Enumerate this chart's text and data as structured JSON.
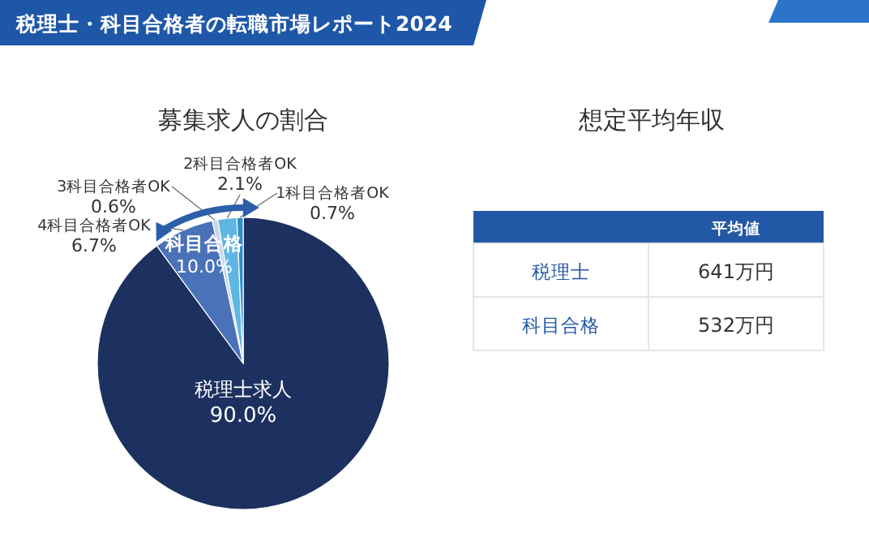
{
  "chart_data": [
    {
      "type": "pie",
      "title": "税理士・科目合格者の転職市場レポート2024",
      "subtitle": "募集求人の割合",
      "categories": [
        "税理士求人",
        "4科目合格者OK",
        "3科目合格者OK",
        "2科目合格者OK",
        "1科目合格者OK"
      ],
      "values": [
        90.0,
        6.7,
        0.6,
        2.1,
        0.7
      ],
      "value_labels": [
        "90.0%",
        "6.7%",
        "0.6%",
        "2.1%",
        "0.7%"
      ],
      "colors": [
        "#1d3160",
        "#4a72b8",
        "#c9d6ea",
        "#5fb6e3",
        "#2f8fd0"
      ],
      "annotations": [
        "科目合格",
        "10.0%"
      ]
    },
    {
      "type": "other",
      "title": "想定平均年収",
      "xlabel": "平均値",
      "categories": [
        "税理士",
        "科目合格"
      ],
      "value_labels": [
        "641万円",
        "532万円"
      ]
    }
  ]
}
